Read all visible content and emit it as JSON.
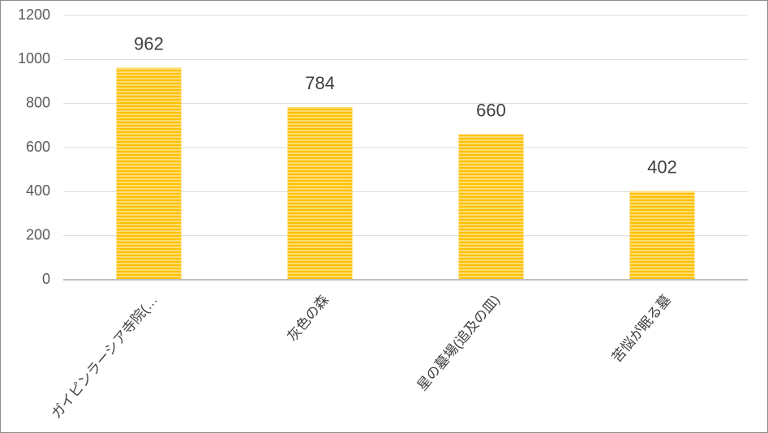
{
  "chart_data": {
    "type": "bar",
    "categories": [
      "ガイピンラーシア寺院(…",
      "灰色の森",
      "星の墓場(追及の皿)",
      "苦悩が眠る墓"
    ],
    "values": [
      962,
      784,
      660,
      402
    ],
    "color": "#ffc000",
    "ylim": [
      0,
      1200
    ],
    "yticks": [
      0,
      200,
      400,
      600,
      800,
      1000,
      1200
    ],
    "grid": true
  }
}
